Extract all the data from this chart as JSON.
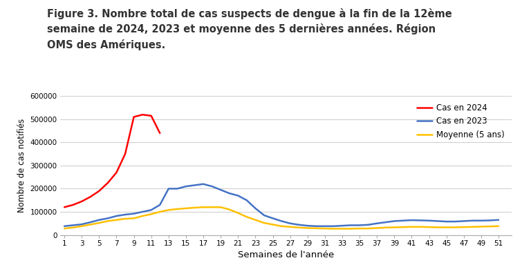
{
  "title_line1": "Figure 3. Nombre total de cas suspects de dengue à la fin de la 12ème",
  "title_line2": "semaine de 2024, 2023 et moyenne des 5 dernières années. Région",
  "title_line3": "OMS des Amériques.",
  "xlabel": "Semaines de l'année",
  "ylabel": "Nombre de cas notifiés",
  "ylim": [
    0,
    600000
  ],
  "yticks": [
    0,
    100000,
    200000,
    300000,
    400000,
    500000,
    600000
  ],
  "ytick_labels": [
    "0",
    "100000",
    "200000",
    "300000",
    "400000",
    "500000",
    "600000"
  ],
  "xticks": [
    1,
    3,
    5,
    7,
    9,
    11,
    13,
    15,
    17,
    19,
    21,
    23,
    25,
    27,
    29,
    31,
    33,
    35,
    37,
    39,
    41,
    43,
    45,
    47,
    49,
    51
  ],
  "background_color": "#ffffff",
  "grid_color": "#d0d0d0",
  "series": {
    "cas2024": {
      "label": "Cas en 2024",
      "color": "#ff0000",
      "weeks": [
        1,
        2,
        3,
        4,
        5,
        6,
        7,
        8,
        9,
        10,
        11,
        12
      ],
      "values": [
        120000,
        130000,
        145000,
        165000,
        190000,
        225000,
        270000,
        350000,
        510000,
        520000,
        515000,
        440000
      ]
    },
    "cas2023": {
      "label": "Cas en 2023",
      "color": "#4472c4",
      "weeks": [
        1,
        2,
        3,
        4,
        5,
        6,
        7,
        8,
        9,
        10,
        11,
        12,
        13,
        14,
        15,
        16,
        17,
        18,
        19,
        20,
        21,
        22,
        23,
        24,
        25,
        26,
        27,
        28,
        29,
        30,
        31,
        32,
        33,
        34,
        35,
        36,
        37,
        38,
        39,
        40,
        41,
        42,
        43,
        44,
        45,
        46,
        47,
        48,
        49,
        50,
        51
      ],
      "values": [
        38000,
        42000,
        46000,
        55000,
        65000,
        72000,
        82000,
        88000,
        92000,
        100000,
        108000,
        130000,
        200000,
        200000,
        210000,
        215000,
        220000,
        210000,
        195000,
        180000,
        170000,
        150000,
        115000,
        85000,
        72000,
        60000,
        50000,
        44000,
        40000,
        38000,
        38000,
        38000,
        40000,
        42000,
        42000,
        44000,
        50000,
        55000,
        60000,
        62000,
        64000,
        63000,
        62000,
        60000,
        58000,
        58000,
        60000,
        62000,
        62000,
        63000,
        65000
      ]
    },
    "moyenne": {
      "label": "Moyenne (5 ans)",
      "color": "#ffc000",
      "weeks": [
        1,
        2,
        3,
        4,
        5,
        6,
        7,
        8,
        9,
        10,
        11,
        12,
        13,
        14,
        15,
        16,
        17,
        18,
        19,
        20,
        21,
        22,
        23,
        24,
        25,
        26,
        27,
        28,
        29,
        30,
        31,
        32,
        33,
        34,
        35,
        36,
        37,
        38,
        39,
        40,
        41,
        42,
        43,
        44,
        45,
        46,
        47,
        48,
        49,
        50,
        51
      ],
      "values": [
        28000,
        32000,
        38000,
        45000,
        52000,
        60000,
        65000,
        70000,
        72000,
        82000,
        90000,
        100000,
        108000,
        112000,
        115000,
        118000,
        120000,
        120000,
        120000,
        110000,
        95000,
        78000,
        65000,
        52000,
        45000,
        38000,
        35000,
        32000,
        30000,
        29000,
        28000,
        27000,
        27000,
        27000,
        28000,
        28000,
        30000,
        32000,
        33000,
        34000,
        35000,
        35000,
        34000,
        33000,
        33000,
        33000,
        34000,
        35000,
        36000,
        37000,
        38000
      ]
    }
  }
}
